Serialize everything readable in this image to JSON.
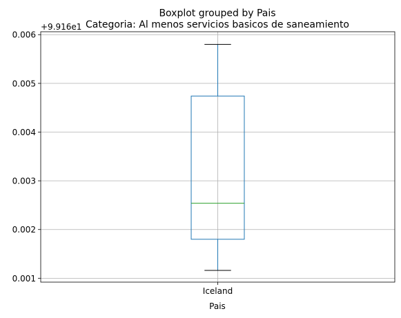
{
  "chart_data": {
    "type": "boxplot",
    "suptitle": "Boxplot grouped by Pais",
    "title": "Categoria: Al menos servicios basicos de saneamiento",
    "xlabel": "Pais",
    "ylabel": "",
    "offset_text": "+9.916e1",
    "ylim": [
      0.00092,
      0.00606
    ],
    "yticks": [
      {
        "value": 0.001,
        "label": "0.001"
      },
      {
        "value": 0.002,
        "label": "0.002"
      },
      {
        "value": 0.003,
        "label": "0.003"
      },
      {
        "value": 0.004,
        "label": "0.004"
      },
      {
        "value": 0.005,
        "label": "0.005"
      },
      {
        "value": 0.006,
        "label": "0.006"
      }
    ],
    "categories": [
      "Iceland"
    ],
    "boxes": [
      {
        "category": "Iceland",
        "whisker_low": 0.00116,
        "q1": 0.0018,
        "median": 0.00254,
        "q3": 0.00474,
        "whisker_high": 0.0058
      }
    ],
    "grid": true,
    "colors": {
      "box": "#1f77b4",
      "median": "#2ca02c",
      "whisker_cap": "#000000",
      "grid": "#b0b0b0",
      "axes": "#000000"
    }
  }
}
